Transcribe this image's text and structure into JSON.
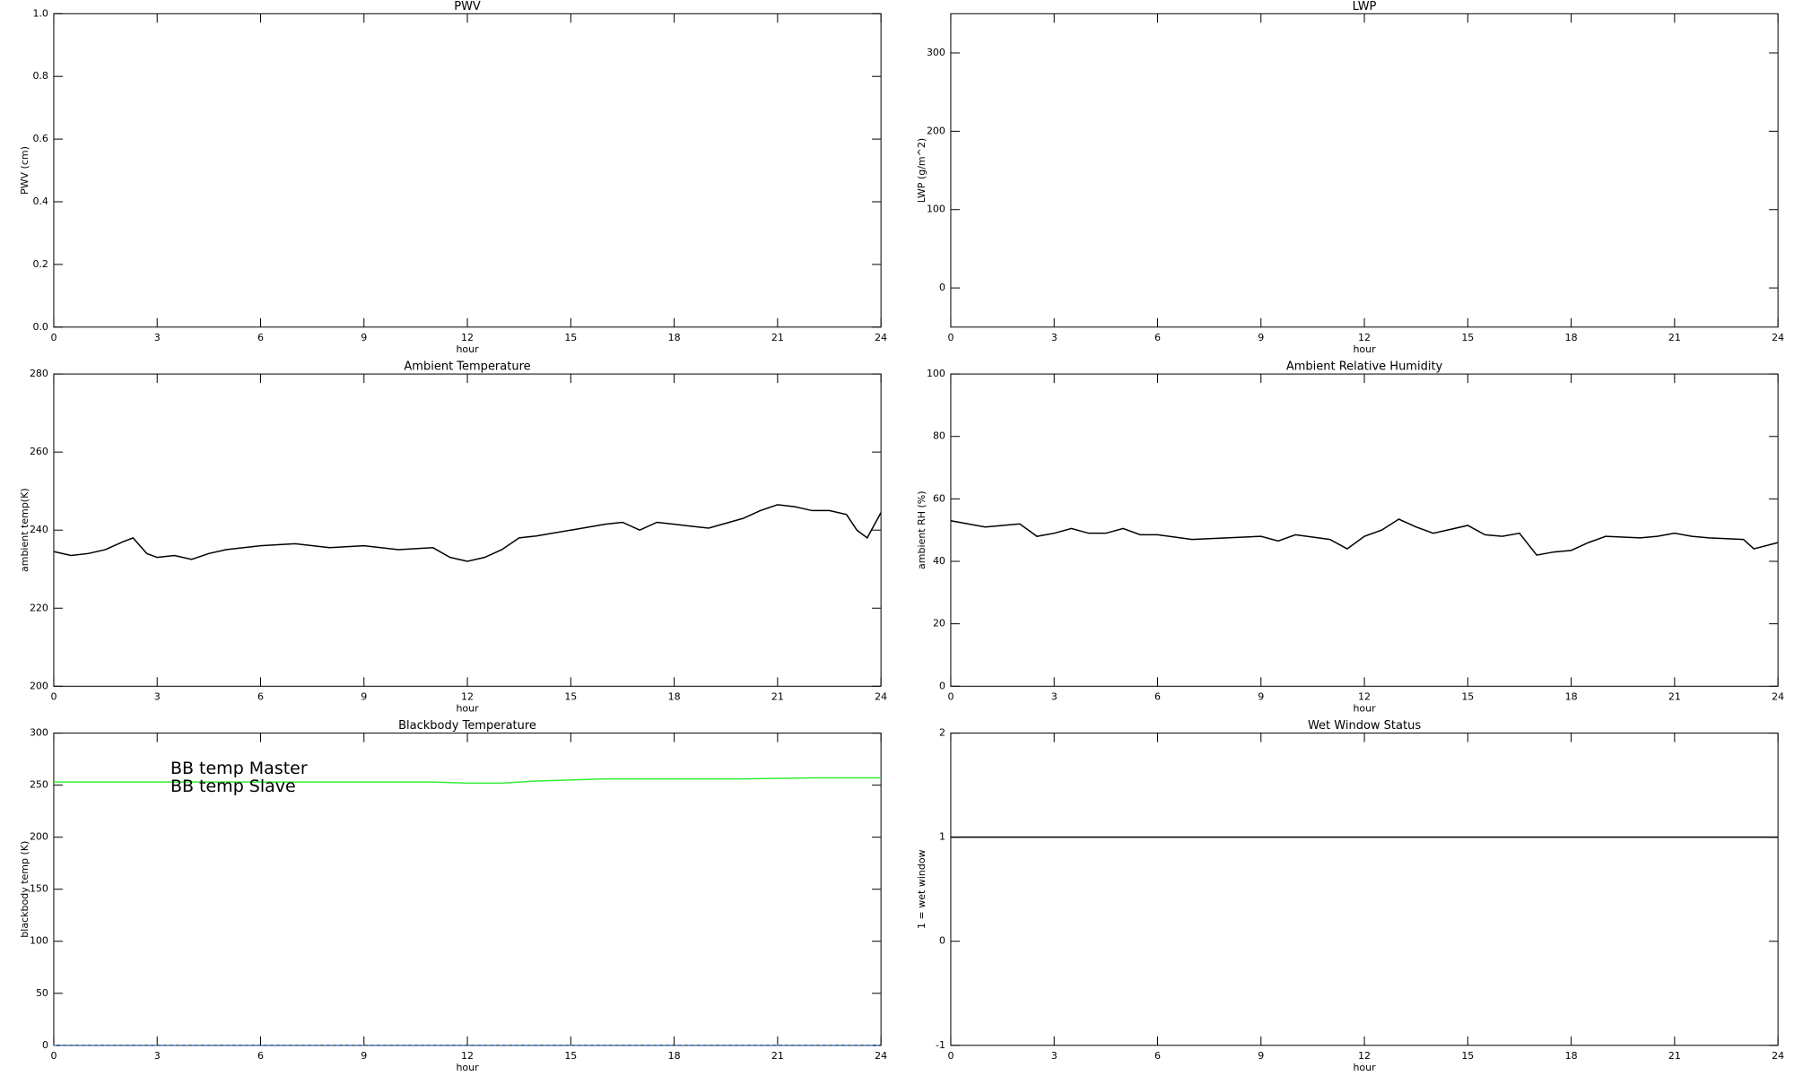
{
  "chart_data": [
    {
      "type": "line",
      "title": "PWV",
      "xlabel": "hour",
      "ylabel": "PWV (cm)",
      "xlim": [
        0,
        24
      ],
      "xticks": [
        0,
        3,
        6,
        9,
        12,
        15,
        18,
        21,
        24
      ],
      "ylim": [
        0,
        1
      ],
      "yticks": [
        {
          "value": 0,
          "label": "0.0"
        },
        0.2,
        0.4,
        0.6,
        0.8,
        {
          "value": 1,
          "label": "1.0"
        }
      ]
    },
    {
      "type": "line",
      "title": "LWP",
      "xlabel": "hour",
      "ylabel": "LWP (g/m^2)",
      "xlim": [
        0,
        24
      ],
      "xticks": [
        0,
        3,
        6,
        9,
        12,
        15,
        18,
        21,
        24
      ],
      "ylim": [
        -50,
        350
      ],
      "yticks": [
        0,
        100,
        200,
        300
      ]
    },
    {
      "type": "line",
      "title": "Ambient Temperature",
      "xlabel": "hour",
      "ylabel": "ambient temp(K)",
      "xlim": [
        0,
        24
      ],
      "xticks": [
        0,
        3,
        6,
        9,
        12,
        15,
        18,
        21,
        24
      ],
      "ylim": [
        200,
        280
      ],
      "yticks": [
        200,
        220,
        240,
        260,
        280
      ],
      "color": "#000000",
      "x": [
        0,
        0.5,
        1,
        1.5,
        2,
        2.3,
        2.7,
        3,
        3.5,
        4,
        4.5,
        5,
        6,
        7,
        8,
        9,
        10,
        11,
        11.5,
        12,
        12.5,
        13,
        13.5,
        14,
        15,
        16,
        16.5,
        17,
        17.5,
        18,
        18.5,
        19,
        20,
        20.5,
        21,
        21.5,
        22,
        22.5,
        23,
        23.3,
        23.6,
        24
      ],
      "values": [
        234.5,
        233.5,
        234,
        235,
        237,
        238,
        234,
        233,
        233.5,
        232.5,
        234,
        235,
        236,
        236.5,
        235.5,
        236,
        235,
        235.5,
        233,
        232,
        233,
        235,
        238,
        238.5,
        240,
        241.5,
        242,
        240,
        242,
        241.5,
        241,
        240.5,
        243,
        245,
        246.5,
        246,
        245,
        245,
        244,
        240,
        238,
        244.5
      ]
    },
    {
      "type": "line",
      "title": "Ambient Relative Humidity",
      "xlabel": "hour",
      "ylabel": "ambient RH (%)",
      "xlim": [
        0,
        24
      ],
      "xticks": [
        0,
        3,
        6,
        9,
        12,
        15,
        18,
        21,
        24
      ],
      "ylim": [
        0,
        100
      ],
      "yticks": [
        0,
        20,
        40,
        60,
        80,
        100
      ],
      "color": "#000000",
      "x": [
        0,
        0.5,
        1,
        1.5,
        2,
        2.5,
        3,
        3.5,
        4,
        4.5,
        5,
        5.5,
        6,
        7,
        8,
        9,
        9.5,
        10,
        11,
        11.5,
        12,
        12.5,
        13,
        13.5,
        14,
        15,
        15.5,
        16,
        16.5,
        17,
        17.5,
        18,
        18.5,
        19,
        20,
        20.5,
        21,
        21.5,
        22,
        23,
        23.3,
        24
      ],
      "values": [
        53,
        52,
        51,
        51.5,
        52,
        48,
        49,
        50.5,
        49,
        49,
        50.5,
        48.5,
        48.5,
        47,
        47.5,
        48,
        46.5,
        48.5,
        47,
        44,
        48,
        50,
        53.5,
        51,
        49,
        51.5,
        48.5,
        48,
        49,
        42,
        43,
        43.5,
        46,
        48,
        47.5,
        48,
        49,
        48,
        47.5,
        47,
        44,
        46
      ]
    },
    {
      "type": "line",
      "title": "Blackbody Temperature",
      "xlabel": "hour",
      "ylabel": "blackbody temp (K)",
      "xlim": [
        0,
        24
      ],
      "xticks": [
        0,
        3,
        6,
        9,
        12,
        15,
        18,
        21,
        24
      ],
      "ylim": [
        0,
        300
      ],
      "yticks": [
        0,
        50,
        100,
        150,
        200,
        250,
        300
      ],
      "x": [
        0,
        3,
        6,
        9,
        11,
        12,
        13,
        14,
        16,
        18,
        20,
        22,
        24
      ],
      "series": [
        {
          "name": "BB temp Master",
          "color": "#3b8cff",
          "values": [
            0,
            0,
            0,
            0,
            0,
            0,
            0,
            0,
            0,
            0,
            0,
            0,
            0
          ]
        },
        {
          "name": "BB temp Slave",
          "color": "#33ee33",
          "values": [
            253,
            253,
            253,
            253,
            253,
            252,
            252,
            254,
            256,
            256,
            256,
            257,
            257
          ]
        }
      ]
    },
    {
      "type": "line",
      "title": "Wet Window Status",
      "xlabel": "hour",
      "ylabel": "1 = wet window",
      "xlim": [
        0,
        24
      ],
      "xticks": [
        0,
        3,
        6,
        9,
        12,
        15,
        18,
        21,
        24
      ],
      "ylim": [
        -1,
        2
      ],
      "yticks": [
        -1,
        0,
        1,
        2
      ],
      "color": "#000000",
      "x": [
        0,
        24
      ],
      "values": [
        1,
        1
      ]
    }
  ]
}
